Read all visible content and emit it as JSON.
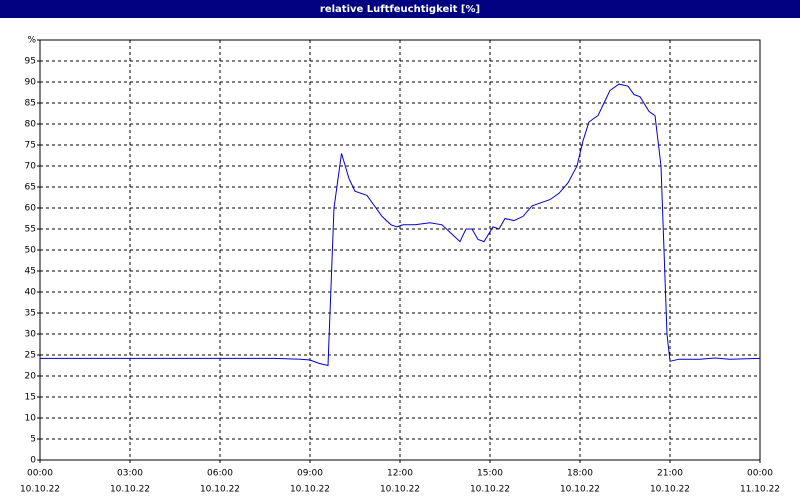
{
  "chart_data": {
    "type": "line",
    "title": "relative Luftfeuchtigkeit [%]",
    "xlim": [
      0,
      24
    ],
    "xticks": [
      {
        "value": 0,
        "label": "00:00"
      },
      {
        "value": 3,
        "label": "03:00"
      },
      {
        "value": 6,
        "label": "06:00"
      },
      {
        "value": 9,
        "label": "09:00"
      },
      {
        "value": 12,
        "label": "12:00"
      },
      {
        "value": 15,
        "label": "15:00"
      },
      {
        "value": 18,
        "label": "18:00"
      },
      {
        "value": 21,
        "label": "21:00"
      },
      {
        "value": 24,
        "label": "00:00"
      }
    ],
    "xtick_dates": [
      "10.10.22",
      "10.10.22",
      "10.10.22",
      "10.10.22",
      "10.10.22",
      "10.10.22",
      "10.10.22",
      "10.10.22",
      "11.10.22"
    ],
    "ylim": [
      0,
      100
    ],
    "yticks": [
      0,
      5,
      10,
      15,
      20,
      25,
      30,
      35,
      40,
      45,
      50,
      55,
      60,
      65,
      70,
      75,
      80,
      85,
      90,
      95,
      {
        "value": 100,
        "label": "%"
      }
    ],
    "grid": true,
    "series": [
      {
        "color": "#0000cc",
        "x": [
          0,
          7.8,
          8.7,
          9.0,
          9.3,
          9.6,
          9.8,
          10.05,
          10.3,
          10.5,
          10.9,
          11.2,
          11.4,
          11.7,
          11.9,
          12.1,
          12.5,
          13.0,
          13.4,
          13.7,
          14.0,
          14.2,
          14.4,
          14.6,
          14.8,
          15.1,
          15.3,
          15.5,
          15.8,
          16.1,
          16.4,
          16.8,
          17.0,
          17.3,
          17.6,
          17.9,
          18.1,
          18.3,
          18.6,
          18.8,
          19.0,
          19.3,
          19.6,
          19.8,
          20.0,
          20.3,
          20.5,
          20.7,
          20.9,
          21.0,
          21.3,
          22.0,
          22.5,
          23.0,
          24.0
        ],
        "values": [
          24.2,
          24.2,
          24,
          23.8,
          23,
          22.5,
          60,
          73,
          67,
          64,
          63,
          60,
          58,
          56,
          55.5,
          56,
          56,
          56.5,
          56,
          54,
          52,
          55,
          55,
          52.5,
          52,
          55.5,
          55,
          57.5,
          57,
          58,
          60.5,
          61.5,
          62,
          63.5,
          66,
          70,
          76,
          80.5,
          82,
          85,
          88,
          89.5,
          89,
          87,
          86.5,
          83,
          82,
          70,
          30,
          23.5,
          24,
          24,
          24.3,
          24,
          24.2
        ]
      }
    ]
  }
}
